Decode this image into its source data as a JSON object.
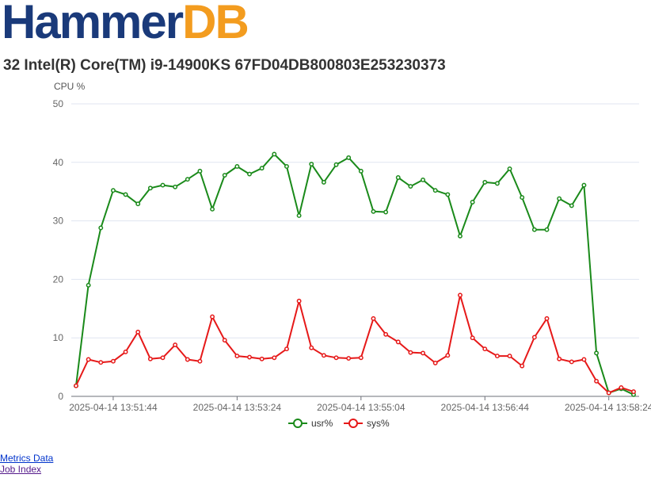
{
  "logo": {
    "part1": "Hammer",
    "part2": "DB",
    "color1": "#1a3a7a",
    "color2": "#f39c1f"
  },
  "heading": "32 Intel(R) Core(TM) i9-14900KS 67FD04DB800803E253230373",
  "links": [
    {
      "label": "Metrics Data"
    },
    {
      "label": "Job Index"
    }
  ],
  "chart_data": {
    "type": "line",
    "ylabel": "CPU %",
    "ylim": [
      0,
      50
    ],
    "yticks": [
      0,
      10,
      20,
      30,
      40,
      50
    ],
    "xtick_labels": [
      "2025-04-14 13:51:44",
      "2025-04-14 13:53:24",
      "2025-04-14 13:55:04",
      "2025-04-14 13:56:44",
      "2025-04-14 13:58:24"
    ],
    "xtick_index": [
      3,
      13,
      23,
      33,
      43
    ],
    "grid": true,
    "legend_position": "bottom",
    "series": [
      {
        "name": "usr%",
        "color": "#1a8a1a",
        "values": [
          1.8,
          19.0,
          28.8,
          35.2,
          34.5,
          32.9,
          35.6,
          36.1,
          35.8,
          37.1,
          38.5,
          32.0,
          37.8,
          39.3,
          38.0,
          39.0,
          41.4,
          39.3,
          30.9,
          39.7,
          36.6,
          39.6,
          40.8,
          38.5,
          31.6,
          31.5,
          37.4,
          35.9,
          37.0,
          35.2,
          34.5,
          27.4,
          33.2,
          36.6,
          36.4,
          38.9,
          34.0,
          28.5,
          28.5,
          33.8,
          32.6,
          36.1,
          7.4,
          0.6,
          1.3,
          0.3
        ]
      },
      {
        "name": "sys%",
        "color": "#e61919",
        "values": [
          1.8,
          6.3,
          5.8,
          6.0,
          7.6,
          11.0,
          6.4,
          6.6,
          8.8,
          6.3,
          6.0,
          13.6,
          9.6,
          6.9,
          6.7,
          6.4,
          6.6,
          8.1,
          16.3,
          8.3,
          7.0,
          6.6,
          6.5,
          6.6,
          13.3,
          10.6,
          9.3,
          7.5,
          7.4,
          5.7,
          7.0,
          17.3,
          10.0,
          8.1,
          6.9,
          6.9,
          5.2,
          10.1,
          13.3,
          6.4,
          5.9,
          6.3,
          2.6,
          0.6,
          1.5,
          0.8
        ]
      }
    ]
  }
}
